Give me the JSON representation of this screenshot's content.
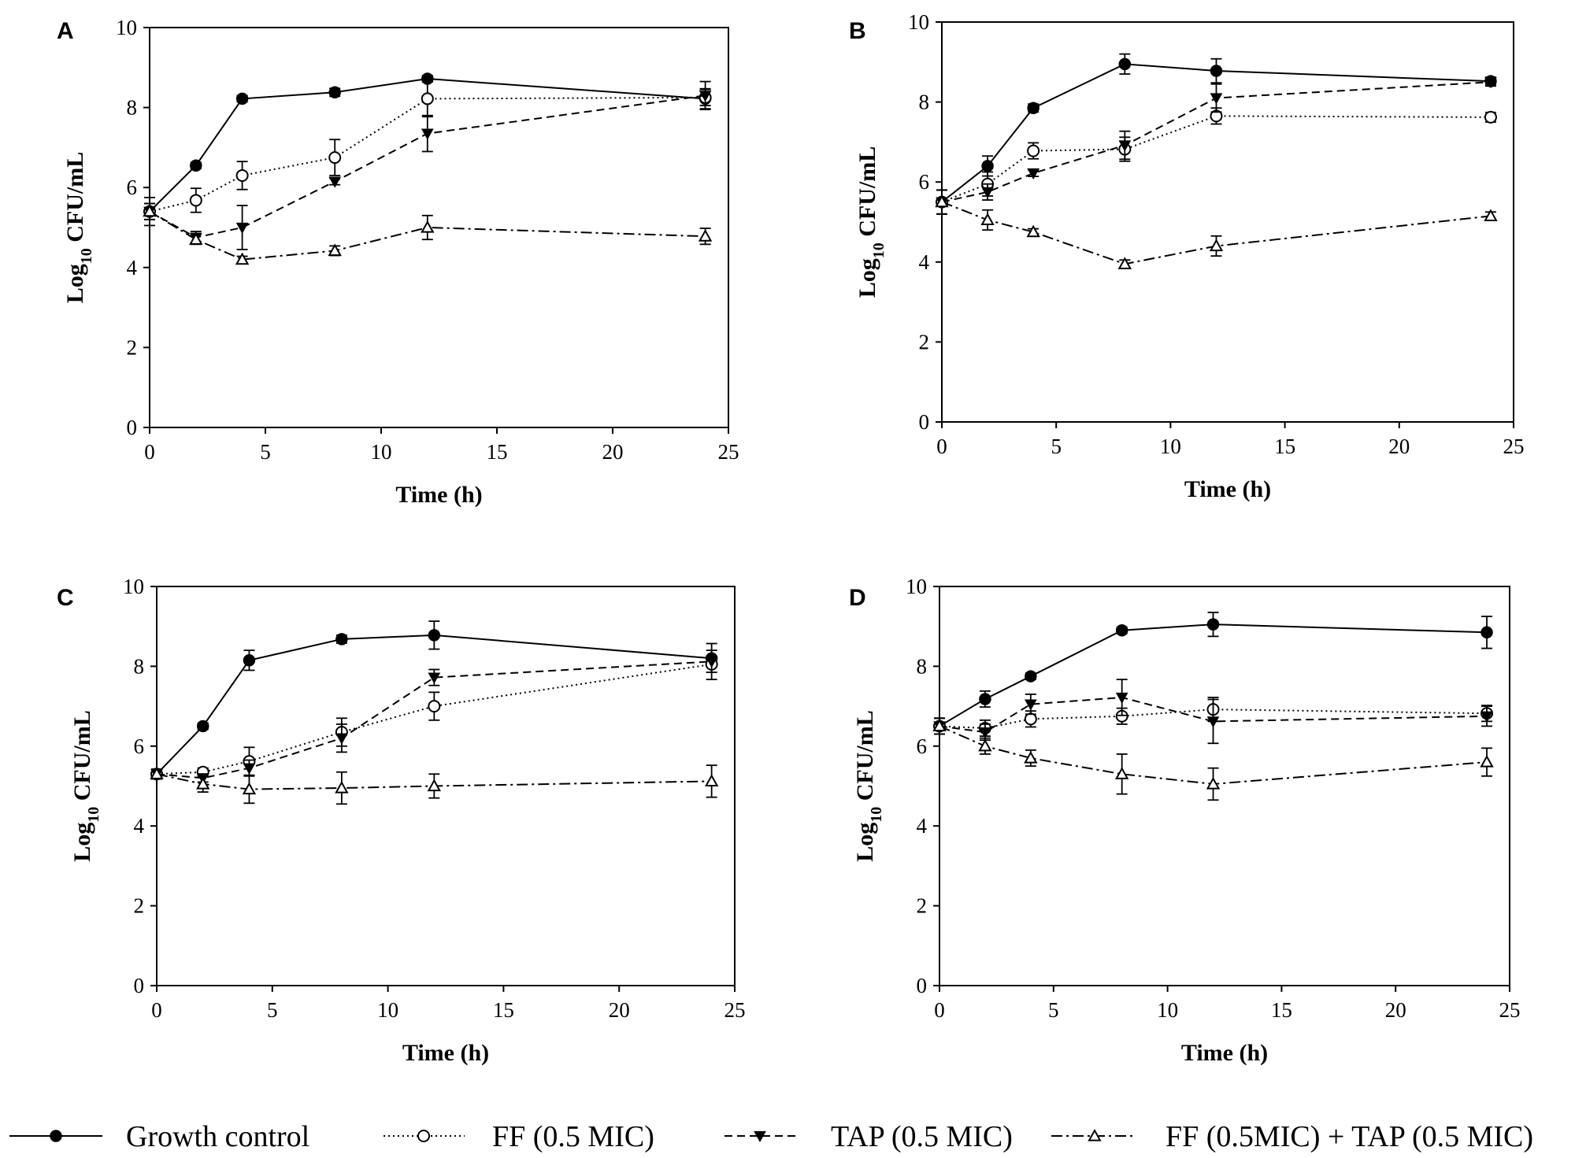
{
  "chart_data": [
    {
      "panel": "A",
      "type": "line",
      "xlabel": "Time (h)",
      "ylabel_main": "Log",
      "ylabel_sub": "10",
      "ylabel_rest": " CFU/mL",
      "xlim": [
        0,
        25
      ],
      "ylim": [
        0,
        10
      ],
      "xticks": [
        0,
        5,
        10,
        15,
        20,
        25
      ],
      "yticks": [
        0,
        2,
        4,
        6,
        8,
        10
      ],
      "x": [
        0,
        2,
        4,
        8,
        12,
        24
      ],
      "series": [
        {
          "name": "Growth control",
          "values": [
            5.4,
            6.55,
            8.22,
            8.38,
            8.72,
            8.22
          ],
          "errors": [
            0.35,
            0.08,
            0.08,
            0.1,
            0.08,
            0.25
          ]
        },
        {
          "name": "FF (0.5 MIC)",
          "values": [
            5.4,
            5.68,
            6.3,
            6.75,
            8.22,
            8.25
          ],
          "errors": [
            0.2,
            0.3,
            0.35,
            0.45,
            0.45,
            0.2
          ]
        },
        {
          "name": "TAP (0.5 MIC)",
          "values": [
            5.4,
            4.75,
            5.0,
            6.15,
            7.35,
            8.3
          ],
          "errors": [
            0.2,
            0.15,
            0.55,
            0.08,
            0.45,
            0.35
          ]
        },
        {
          "name": "FF (0.5MIC) + TAP (0.5 MIC)",
          "values": [
            5.4,
            4.7,
            4.2,
            4.42,
            5.0,
            4.78
          ],
          "errors": [
            0.2,
            0.12,
            0.08,
            0.12,
            0.3,
            0.2
          ]
        }
      ]
    },
    {
      "panel": "B",
      "type": "line",
      "xlabel": "Time (h)",
      "ylabel_main": "Log",
      "ylabel_sub": "10",
      "ylabel_rest": " CFU/mL",
      "xlim": [
        0,
        25
      ],
      "ylim": [
        0,
        10
      ],
      "xticks": [
        0,
        5,
        10,
        15,
        20,
        25
      ],
      "yticks": [
        0,
        2,
        4,
        6,
        8,
        10
      ],
      "x": [
        0,
        2,
        4,
        8,
        12,
        24
      ],
      "series": [
        {
          "name": "Growth control",
          "values": [
            5.5,
            6.4,
            7.85,
            8.95,
            8.78,
            8.52
          ],
          "errors": [
            0.3,
            0.25,
            0.1,
            0.25,
            0.3,
            0.1
          ]
        },
        {
          "name": "FF (0.5 MIC)",
          "values": [
            5.5,
            5.95,
            6.78,
            6.82,
            7.65,
            7.62
          ],
          "errors": [
            0.3,
            0.3,
            0.2,
            0.3,
            0.2,
            0.12
          ]
        },
        {
          "name": "TAP (0.5 MIC)",
          "values": [
            5.5,
            5.75,
            6.22,
            6.92,
            8.1,
            8.5
          ],
          "errors": [
            0.3,
            0.2,
            0.08,
            0.35,
            0.35,
            0.1
          ]
        },
        {
          "name": "FF (0.5MIC) + TAP (0.5 MIC)",
          "values": [
            5.5,
            5.05,
            4.75,
            3.95,
            4.4,
            5.15
          ],
          "errors": [
            0.3,
            0.25,
            0.08,
            0.1,
            0.25,
            0.1
          ]
        }
      ]
    },
    {
      "panel": "C",
      "type": "line",
      "xlabel": "Time (h)",
      "ylabel_main": "Log",
      "ylabel_sub": "10",
      "ylabel_rest": " CFU/mL",
      "xlim": [
        0,
        25
      ],
      "ylim": [
        0,
        10
      ],
      "xticks": [
        0,
        5,
        10,
        15,
        20,
        25
      ],
      "yticks": [
        0,
        2,
        4,
        6,
        8,
        10
      ],
      "x": [
        0,
        2,
        4,
        8,
        12,
        24
      ],
      "series": [
        {
          "name": "Growth control",
          "values": [
            5.3,
            6.5,
            8.15,
            8.68,
            8.78,
            8.2
          ],
          "errors": [
            0.12,
            0.08,
            0.25,
            0.1,
            0.35,
            0.2
          ]
        },
        {
          "name": "FF (0.5 MIC)",
          "values": [
            5.3,
            5.35,
            5.62,
            6.35,
            7.0,
            8.05
          ],
          "errors": [
            0.12,
            0.1,
            0.35,
            0.35,
            0.35,
            0.2
          ]
        },
        {
          "name": "TAP (0.5 MIC)",
          "values": [
            5.3,
            5.2,
            5.45,
            6.2,
            7.72,
            8.12
          ],
          "errors": [
            0.12,
            0.1,
            0.2,
            0.35,
            0.2,
            0.45
          ]
        },
        {
          "name": "FF (0.5MIC) + TAP (0.5 MIC)",
          "values": [
            5.3,
            5.05,
            4.92,
            4.95,
            5.0,
            5.12
          ],
          "errors": [
            0.12,
            0.2,
            0.35,
            0.4,
            0.3,
            0.4
          ]
        }
      ]
    },
    {
      "panel": "D",
      "type": "line",
      "xlabel": "Time (h)",
      "ylabel_main": "Log",
      "ylabel_sub": "10",
      "ylabel_rest": " CFU/mL",
      "xlim": [
        0,
        25
      ],
      "ylim": [
        0,
        10
      ],
      "xticks": [
        0,
        5,
        10,
        15,
        20,
        25
      ],
      "yticks": [
        0,
        2,
        4,
        6,
        8,
        10
      ],
      "x": [
        0,
        2,
        4,
        8,
        12,
        24
      ],
      "series": [
        {
          "name": "Growth control",
          "values": [
            6.5,
            7.18,
            7.75,
            8.9,
            9.05,
            8.85
          ],
          "errors": [
            0.2,
            0.2,
            0.08,
            0.08,
            0.3,
            0.4
          ]
        },
        {
          "name": "FF (0.5 MIC)",
          "values": [
            6.5,
            6.45,
            6.68,
            6.75,
            6.92,
            6.82
          ],
          "errors": [
            0.2,
            0.2,
            0.2,
            0.2,
            0.3,
            0.2
          ]
        },
        {
          "name": "TAP (0.5 MIC)",
          "values": [
            6.5,
            6.35,
            7.05,
            7.22,
            6.62,
            6.75
          ],
          "errors": [
            0.2,
            0.2,
            0.25,
            0.45,
            0.55,
            0.25
          ]
        },
        {
          "name": "FF (0.5MIC) + TAP (0.5 MIC)",
          "values": [
            6.5,
            6.0,
            5.7,
            5.3,
            5.05,
            5.6
          ],
          "errors": [
            0.2,
            0.2,
            0.2,
            0.5,
            0.4,
            0.35
          ]
        }
      ]
    }
  ],
  "legend": [
    {
      "label": "Growth control",
      "marker": "filled-circle",
      "line": "solid"
    },
    {
      "label": "FF (0.5 MIC)",
      "marker": "open-circle",
      "line": "dotted"
    },
    {
      "label": "TAP (0.5 MIC)",
      "marker": "filled-triangle-down",
      "line": "dashed"
    },
    {
      "label": "FF (0.5MIC) + TAP (0.5 MIC)",
      "marker": "open-triangle-up",
      "line": "dash-dot"
    }
  ]
}
